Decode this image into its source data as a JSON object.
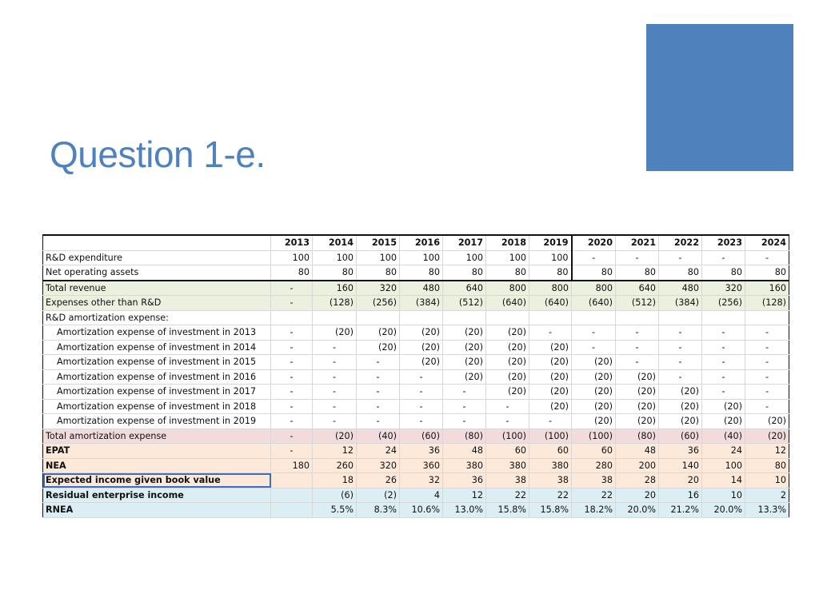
{
  "slide": {
    "title": "Question 1-e.",
    "accent_color": "#4f81bd"
  },
  "table": {
    "years": [
      "2013",
      "2014",
      "2015",
      "2016",
      "2017",
      "2018",
      "2019",
      "2020",
      "2021",
      "2022",
      "2023",
      "2024"
    ],
    "rows": [
      {
        "label": "R&D expenditure",
        "style": "top",
        "values": [
          "100",
          "100",
          "100",
          "100",
          "100",
          "100",
          "100",
          "-",
          "-",
          "-",
          "-",
          "-"
        ]
      },
      {
        "label": "Net operating assets",
        "style": "top noa",
        "values": [
          "80",
          "80",
          "80",
          "80",
          "80",
          "80",
          "80",
          "80",
          "80",
          "80",
          "80",
          "80"
        ]
      },
      {
        "label": "Total revenue",
        "style": "green",
        "values": [
          "-",
          "160",
          "320",
          "480",
          "640",
          "800",
          "800",
          "800",
          "640",
          "480",
          "320",
          "160"
        ]
      },
      {
        "label": "Expenses other than R&D",
        "style": "green",
        "values": [
          "-",
          "(128)",
          "(256)",
          "(384)",
          "(512)",
          "(640)",
          "(640)",
          "(640)",
          "(512)",
          "(384)",
          "(256)",
          "(128)"
        ]
      },
      {
        "label": "R&D amortization expense:",
        "style": "",
        "values": [
          "",
          "",
          "",
          "",
          "",
          "",
          "",
          "",
          "",
          "",
          "",
          ""
        ]
      },
      {
        "label": "Amortization expense of investment in 2013",
        "style": "indent",
        "values": [
          "-",
          "(20)",
          "(20)",
          "(20)",
          "(20)",
          "(20)",
          "-",
          "-",
          "-",
          "-",
          "-",
          "-"
        ]
      },
      {
        "label": "Amortization expense of investment in 2014",
        "style": "indent",
        "values": [
          "-",
          "-",
          "(20)",
          "(20)",
          "(20)",
          "(20)",
          "(20)",
          "-",
          "-",
          "-",
          "-",
          "-"
        ]
      },
      {
        "label": "Amortization expense of investment in 2015",
        "style": "indent",
        "values": [
          "-",
          "-",
          "-",
          "(20)",
          "(20)",
          "(20)",
          "(20)",
          "(20)",
          "-",
          "-",
          "-",
          "-"
        ]
      },
      {
        "label": "Amortization expense of investment in 2016",
        "style": "indent",
        "values": [
          "-",
          "-",
          "-",
          "-",
          "(20)",
          "(20)",
          "(20)",
          "(20)",
          "(20)",
          "-",
          "-",
          "-"
        ]
      },
      {
        "label": "Amortization expense of investment in 2017",
        "style": "indent",
        "values": [
          "-",
          "-",
          "-",
          "-",
          "-",
          "(20)",
          "(20)",
          "(20)",
          "(20)",
          "(20)",
          "-",
          "-"
        ]
      },
      {
        "label": "Amortization expense of investment in 2018",
        "style": "indent",
        "values": [
          "-",
          "-",
          "-",
          "-",
          "-",
          "-",
          "(20)",
          "(20)",
          "(20)",
          "(20)",
          "(20)",
          "-"
        ]
      },
      {
        "label": "Amortization expense of investment in 2019",
        "style": "indent",
        "values": [
          "-",
          "-",
          "-",
          "-",
          "-",
          "-",
          "-",
          "(20)",
          "(20)",
          "(20)",
          "(20)",
          "(20)"
        ]
      },
      {
        "label": "Total amortization expense",
        "style": "pink",
        "values": [
          "-",
          "(20)",
          "(40)",
          "(60)",
          "(80)",
          "(100)",
          "(100)",
          "(100)",
          "(80)",
          "(60)",
          "(40)",
          "(20)"
        ]
      },
      {
        "label": "EPAT",
        "style": "peach bold",
        "values": [
          "-",
          "12",
          "24",
          "36",
          "48",
          "60",
          "60",
          "60",
          "48",
          "36",
          "24",
          "12"
        ]
      },
      {
        "label": "NEA",
        "style": "peach bold",
        "values": [
          "180",
          "260",
          "320",
          "360",
          "380",
          "380",
          "380",
          "280",
          "200",
          "140",
          "100",
          "80"
        ]
      },
      {
        "label": "Expected income given book value",
        "style": "peach bold sel",
        "values": [
          "",
          "18",
          "26",
          "32",
          "36",
          "38",
          "38",
          "38",
          "28",
          "20",
          "14",
          "10"
        ]
      },
      {
        "label": "Residual enterprise income",
        "style": "blue bold",
        "values": [
          "",
          "(6)",
          "(2)",
          "4",
          "12",
          "22",
          "22",
          "22",
          "20",
          "16",
          "10",
          "2"
        ]
      },
      {
        "label": "RNEA",
        "style": "blue bold",
        "values": [
          "",
          "5.5%",
          "8.3%",
          "10.6%",
          "13.0%",
          "15.8%",
          "15.8%",
          "18.2%",
          "20.0%",
          "21.2%",
          "20.0%",
          "13.3%"
        ]
      }
    ]
  }
}
